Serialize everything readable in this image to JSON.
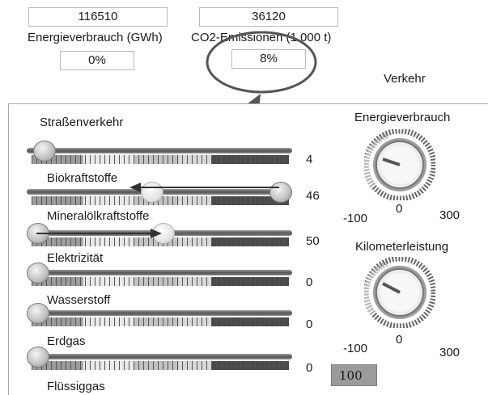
{
  "top": {
    "energy_value": "116510",
    "co2_value": "36120",
    "energy_label": "Energieverbrauch (GWh)",
    "co2_label": "CO2-Emissionen (1 000 t)",
    "energy_pct": "0%",
    "co2_pct": "8%"
  },
  "sector_title": "Verkehr",
  "sliders": [
    {
      "label": "Straßenverkehr",
      "value": "4",
      "level": 0.0
    },
    {
      "label": "Biokraftstoffe",
      "value": "46",
      "level": 1.0
    },
    {
      "label": "Mineralölkraftstoffe",
      "value": "50",
      "level": 0.0
    },
    {
      "label": "Elektrizität",
      "value": "0",
      "level": 0.0
    },
    {
      "label": "Wasserstoff",
      "value": "0",
      "level": 0.0
    },
    {
      "label": "Erdgas",
      "value": "0",
      "level": 0.0
    },
    {
      "label": "Flüssiggas",
      "value": "0",
      "level": 0.0
    }
  ],
  "dials": {
    "energy": {
      "title": "Energieverbrauch",
      "min": "-100",
      "mid": "0",
      "max": "300"
    },
    "km": {
      "title": "Kilometerleistung",
      "min": "-100",
      "mid": "0",
      "max": "300"
    }
  },
  "bottom_value": "100"
}
